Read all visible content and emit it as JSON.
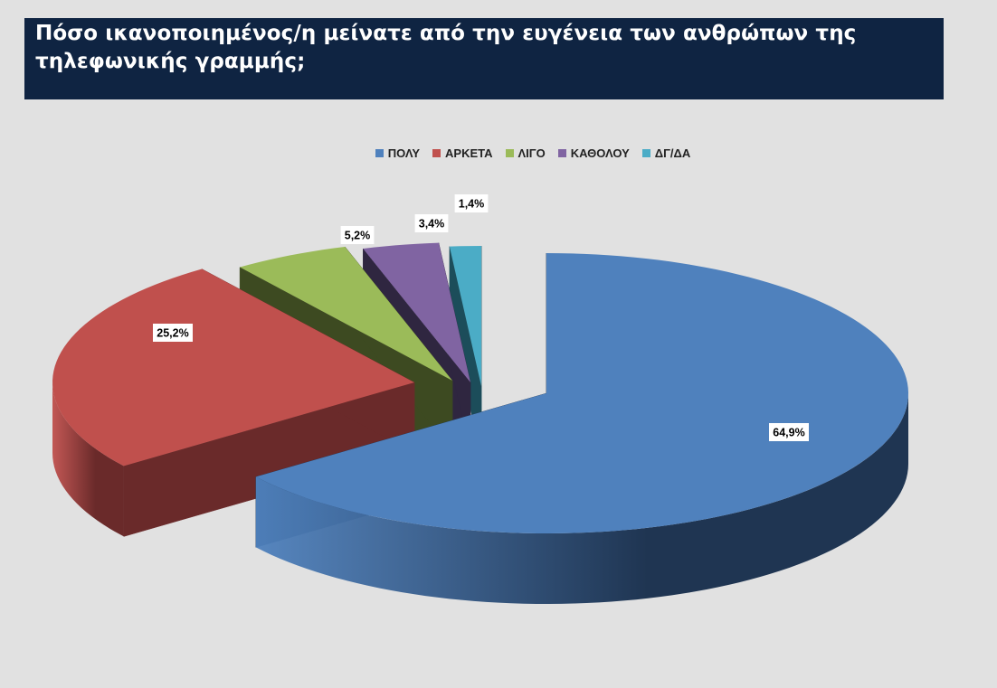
{
  "header": {
    "title": "Πόσο ικανοποιημένος/η μείνατε από την ευγένεια των ανθρώπων της τηλεφωνικής γραμμής;"
  },
  "chart_data": {
    "type": "pie",
    "title": "Πόσο ικανοποιημένος/η μείνατε από την ευγένεια των ανθρώπων της τηλεφωνικής γραμμής;",
    "legend_position": "top",
    "categories": [
      "ΠΟΛΥ",
      "ΑΡΚΕΤΑ",
      "ΛΙΓΟ",
      "ΚΑΘΟΛΟΥ",
      "ΔΓ/ΔΑ"
    ],
    "values": [
      64.9,
      25.2,
      5.2,
      3.4,
      1.4
    ],
    "data_labels": [
      "64,9%",
      "25,2%",
      "5,2%",
      "3,4%",
      "1,4%"
    ],
    "colors": [
      "#4f81bd",
      "#c0504d",
      "#9bbb59",
      "#8064a2",
      "#4bacc6"
    ],
    "dark_colors": [
      "#1f3552",
      "#6a2a2a",
      "#3d4a21",
      "#2f2640",
      "#1c4d5a"
    ],
    "exploded": true,
    "three_d": true
  }
}
